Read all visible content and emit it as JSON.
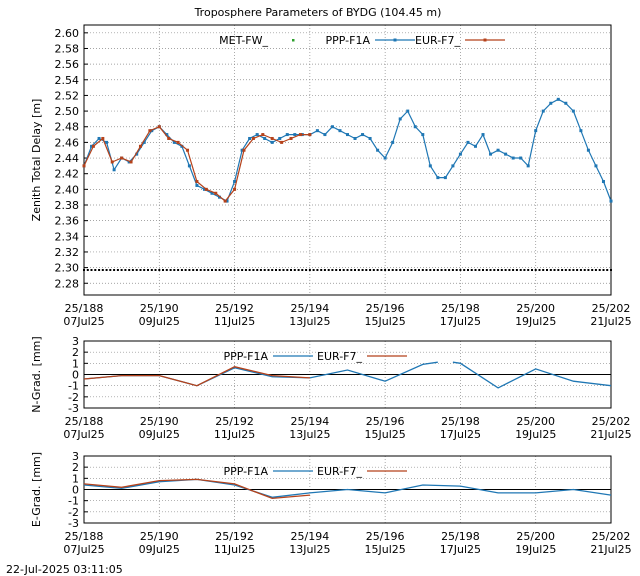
{
  "title": "Troposphere Parameters of BYDG (104.45 m)",
  "footer_timestamp": "22-Jul-2025 03:11:05",
  "colors": {
    "met": "#2ca02c",
    "ppp": "#1f77b4",
    "eur": "#b5421b",
    "grid": "#888888",
    "zero": "#000000"
  },
  "x_ticks": [
    {
      "day": 188,
      "top": "25/188",
      "bottom": "07Jul25"
    },
    {
      "day": 190,
      "top": "25/190",
      "bottom": "09Jul25"
    },
    {
      "day": 192,
      "top": "25/192",
      "bottom": "11Jul25"
    },
    {
      "day": 194,
      "top": "25/194",
      "bottom": "13Jul25"
    },
    {
      "day": 196,
      "top": "25/196",
      "bottom": "15Jul25"
    },
    {
      "day": 198,
      "top": "25/198",
      "bottom": "17Jul25"
    },
    {
      "day": 200,
      "top": "25/200",
      "bottom": "19Jul25"
    },
    {
      "day": 202,
      "top": "25/202",
      "bottom": "21Jul25"
    }
  ],
  "chart_data": [
    {
      "type": "line",
      "ylabel": "Zenith Total Delay [m]",
      "xlim": [
        188,
        202
      ],
      "ylim": [
        2.265,
        2.61
      ],
      "yticks": [
        "2.28",
        "2.30",
        "2.32",
        "2.34",
        "2.36",
        "2.38",
        "2.40",
        "2.42",
        "2.44",
        "2.46",
        "2.48",
        "2.50",
        "2.52",
        "2.54",
        "2.56",
        "2.58",
        "2.60"
      ],
      "grid": true,
      "legend": "top",
      "series": [
        {
          "name": "MET-FW_",
          "style": "points",
          "x": [
            188.0,
            202.0
          ],
          "y": [
            2.297,
            2.297
          ]
        },
        {
          "name": "PPP-F1A",
          "style": "line-points",
          "x": [
            188.0,
            188.2,
            188.4,
            188.6,
            188.8,
            189.0,
            189.2,
            189.4,
            189.6,
            189.8,
            190.0,
            190.2,
            190.4,
            190.6,
            190.8,
            191.0,
            191.2,
            191.4,
            191.6,
            191.8,
            192.0,
            192.2,
            192.4,
            192.6,
            192.8,
            193.0,
            193.2,
            193.4,
            193.6,
            193.8,
            194.0,
            194.2,
            194.4,
            194.6,
            194.8,
            195.0,
            195.2,
            195.4,
            195.6,
            195.8,
            196.0,
            196.2,
            196.4,
            196.6,
            196.8,
            197.0,
            197.2,
            197.4,
            197.6,
            197.8,
            198.0,
            198.2,
            198.4,
            198.6,
            198.8,
            199.0,
            199.2,
            199.4,
            199.6,
            199.8,
            200.0,
            200.2,
            200.4,
            200.6,
            200.8,
            201.0,
            201.2,
            201.4,
            201.6,
            201.8,
            202.0
          ],
          "y": [
            2.43,
            2.455,
            2.465,
            2.46,
            2.425,
            2.44,
            2.435,
            2.445,
            2.46,
            2.475,
            2.48,
            2.47,
            2.46,
            2.455,
            2.43,
            2.405,
            2.4,
            2.395,
            2.39,
            2.385,
            2.41,
            2.45,
            2.465,
            2.47,
            2.465,
            2.46,
            2.465,
            2.47,
            2.47,
            2.47,
            2.47,
            2.475,
            2.47,
            2.48,
            2.475,
            2.47,
            2.465,
            2.47,
            2.465,
            2.45,
            2.44,
            2.46,
            2.49,
            2.5,
            2.48,
            2.47,
            2.43,
            2.415,
            2.415,
            2.43,
            2.445,
            2.46,
            2.455,
            2.47,
            2.445,
            2.45,
            2.445,
            2.44,
            2.44,
            2.43,
            2.475,
            2.5,
            2.51,
            2.515,
            2.51,
            2.5,
            2.475,
            2.45,
            2.43,
            2.41,
            2.385
          ]
        },
        {
          "name": "EUR-F7_",
          "style": "line-points",
          "x": [
            188.0,
            188.25,
            188.5,
            188.75,
            189.0,
            189.25,
            189.5,
            189.75,
            190.0,
            190.25,
            190.5,
            190.75,
            191.0,
            191.25,
            191.5,
            191.75,
            192.0,
            192.25,
            192.5,
            192.75,
            193.0,
            193.25,
            193.5,
            193.75,
            194.0
          ],
          "y": [
            2.43,
            2.455,
            2.465,
            2.435,
            2.44,
            2.435,
            2.455,
            2.475,
            2.48,
            2.465,
            2.46,
            2.45,
            2.41,
            2.4,
            2.395,
            2.385,
            2.4,
            2.45,
            2.465,
            2.47,
            2.465,
            2.46,
            2.465,
            2.47,
            2.47
          ]
        }
      ]
    },
    {
      "type": "line",
      "ylabel": "N-Grad. [mm]",
      "xlim": [
        188,
        202
      ],
      "ylim": [
        -3,
        3
      ],
      "yticks": [
        "-3",
        "-2",
        "-1",
        "0",
        "1",
        "2",
        "3"
      ],
      "grid": true,
      "legend": "top",
      "series": [
        {
          "name": "PPP-F1A",
          "x": [
            188,
            189,
            190,
            191,
            192,
            193,
            194,
            195,
            196,
            197,
            197.4,
            null,
            197.8,
            198,
            199,
            200,
            201,
            202
          ],
          "y": [
            -0.4,
            -0.1,
            -0.1,
            -1.0,
            0.6,
            -0.2,
            -0.3,
            0.4,
            -0.6,
            0.9,
            1.1,
            null,
            1.1,
            1.0,
            -1.2,
            0.5,
            -0.6,
            -1.0
          ]
        },
        {
          "name": "EUR-F7_",
          "x": [
            188,
            189,
            190,
            191,
            192,
            193,
            194
          ],
          "y": [
            -0.4,
            -0.1,
            -0.1,
            -1.0,
            0.7,
            -0.1,
            -0.3
          ]
        }
      ]
    },
    {
      "type": "line",
      "ylabel": "E-Grad. [mm]",
      "xlim": [
        188,
        202
      ],
      "ylim": [
        -3,
        3
      ],
      "yticks": [
        "-3",
        "-2",
        "-1",
        "0",
        "1",
        "2",
        "3"
      ],
      "grid": true,
      "legend": "top",
      "series": [
        {
          "name": "PPP-F1A",
          "x": [
            188,
            189,
            190,
            191,
            192,
            193,
            194,
            195,
            196,
            197,
            198,
            199,
            200,
            201,
            202
          ],
          "y": [
            0.4,
            0.1,
            0.7,
            0.9,
            0.4,
            -0.7,
            -0.3,
            0.0,
            -0.3,
            0.4,
            0.3,
            -0.3,
            -0.3,
            0.0,
            -0.5
          ]
        },
        {
          "name": "EUR-F7_",
          "x": [
            188,
            189,
            190,
            191,
            192,
            193,
            194
          ],
          "y": [
            0.5,
            0.2,
            0.8,
            0.9,
            0.5,
            -0.8,
            -0.5
          ]
        }
      ]
    }
  ]
}
